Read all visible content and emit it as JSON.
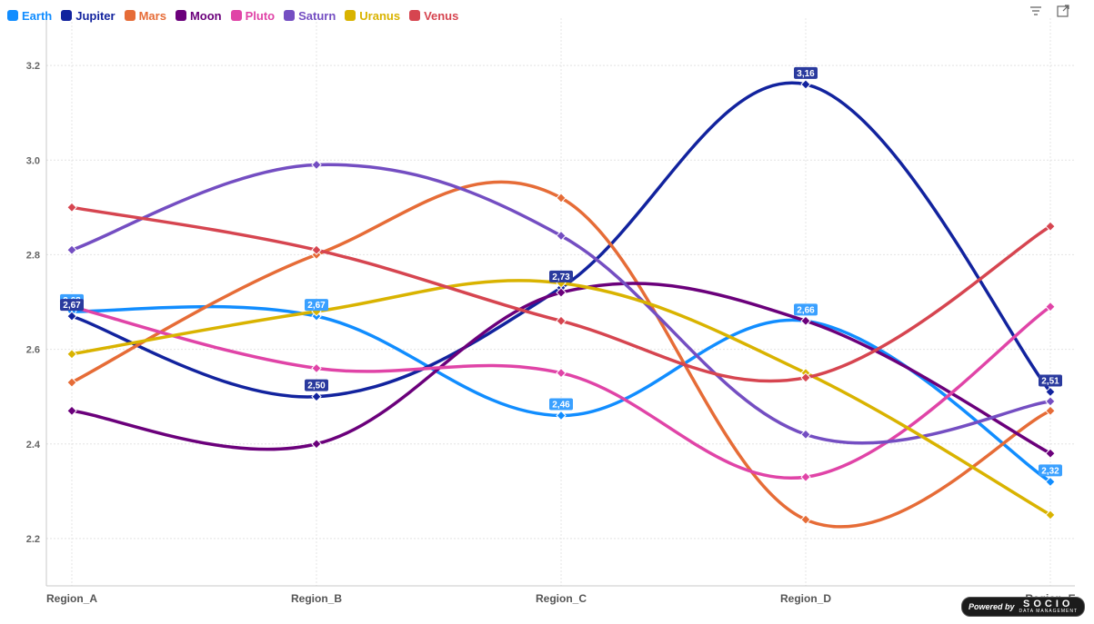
{
  "colors": {
    "Earth": "#118DFF",
    "Jupiter": "#12239E",
    "Mars": "#E66C37",
    "Moon": "#6B007B",
    "Pluto": "#E044A7",
    "Saturn": "#744EC2",
    "Uranus": "#D9B300",
    "Venus": "#D64550"
  },
  "toolbar": {
    "filter_icon": "filter-lines-icon",
    "focus_icon": "focus-mode-icon"
  },
  "badge": {
    "powered": "Powered by",
    "brand": "SOCIO",
    "sub": "DATA MANAGEMENT"
  },
  "chart_data": {
    "type": "line",
    "title": "",
    "xlabel": "",
    "ylabel": "",
    "categories": [
      "Region_A",
      "Region_B",
      "Region_C",
      "Region_D",
      "Region_E"
    ],
    "ylim": [
      2.1,
      3.3
    ],
    "yticks": [
      2.2,
      2.4,
      2.6,
      2.8,
      3.0,
      3.2
    ],
    "grid": true,
    "legend_position": "top-left",
    "series": [
      {
        "name": "Earth",
        "values": [
          2.68,
          2.67,
          2.46,
          2.66,
          2.32
        ],
        "data_labels": [
          "2,68",
          "2,67",
          "2,46",
          "2,66",
          "2,32"
        ]
      },
      {
        "name": "Jupiter",
        "values": [
          2.67,
          2.5,
          2.73,
          3.16,
          2.51
        ],
        "data_labels": [
          "2,67",
          "2,50",
          "2,73",
          "3,16",
          "2,51"
        ]
      },
      {
        "name": "Mars",
        "values": [
          2.53,
          2.8,
          2.92,
          2.24,
          2.47
        ]
      },
      {
        "name": "Moon",
        "values": [
          2.47,
          2.4,
          2.72,
          2.66,
          2.38
        ]
      },
      {
        "name": "Pluto",
        "values": [
          2.69,
          2.56,
          2.55,
          2.33,
          2.69
        ]
      },
      {
        "name": "Saturn",
        "values": [
          2.81,
          2.99,
          2.84,
          2.42,
          2.49
        ]
      },
      {
        "name": "Uranus",
        "values": [
          2.59,
          2.68,
          2.74,
          2.55,
          2.25
        ]
      },
      {
        "name": "Venus",
        "values": [
          2.9,
          2.81,
          2.66,
          2.54,
          2.86
        ]
      }
    ]
  }
}
